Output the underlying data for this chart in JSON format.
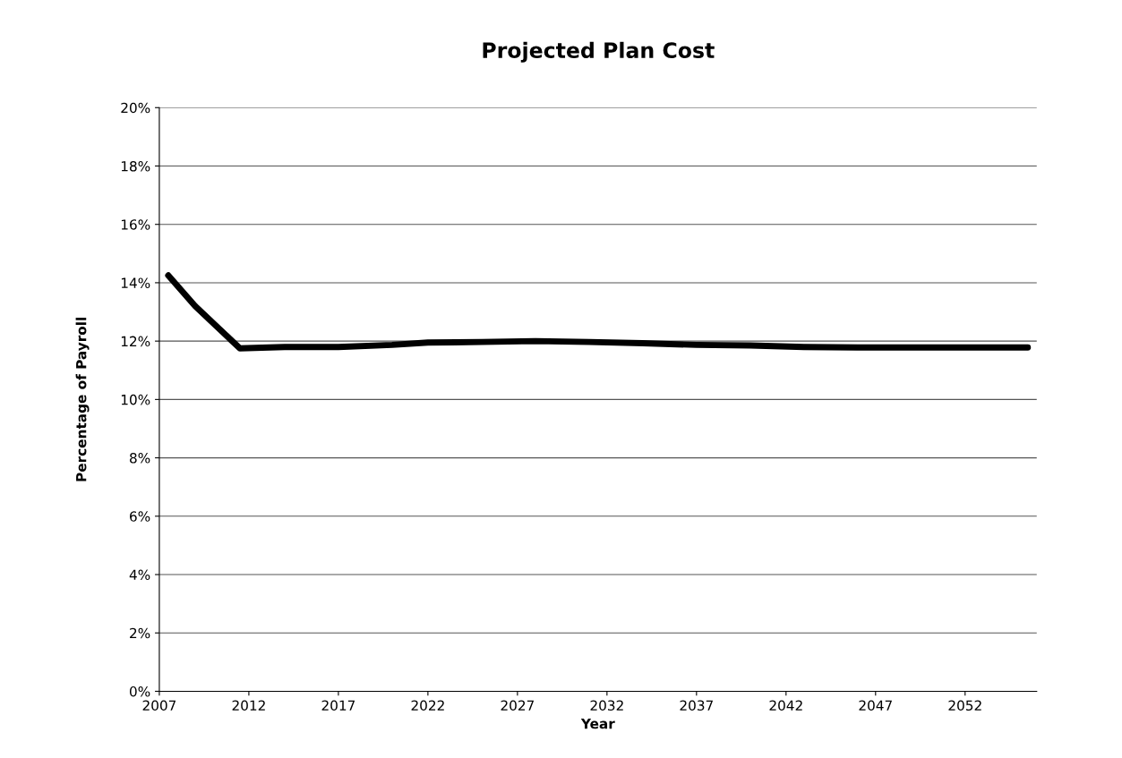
{
  "chart_data": {
    "type": "line",
    "title": "Projected Plan Cost",
    "xlabel": "Year",
    "ylabel": "Percentage of Payroll",
    "x": [
      2007.5,
      2009,
      2011.5,
      2014,
      2017,
      2020,
      2022,
      2025,
      2028,
      2031,
      2034,
      2037,
      2040,
      2043,
      2046,
      2050,
      2055.5
    ],
    "series": [
      {
        "color": "#000000",
        "values": [
          14.25,
          13.2,
          11.75,
          11.8,
          11.8,
          11.87,
          11.95,
          11.97,
          12.0,
          11.97,
          11.93,
          11.87,
          11.85,
          11.8,
          11.78,
          11.78,
          11.78
        ]
      }
    ],
    "xlim": [
      2007,
      2056
    ],
    "xticks": [
      2007,
      2012,
      2017,
      2022,
      2027,
      2032,
      2037,
      2042,
      2047,
      2052
    ],
    "ylim": [
      0,
      20
    ],
    "yticks": [
      {
        "value": 0,
        "label": "0%"
      },
      {
        "value": 2,
        "label": "2%"
      },
      {
        "value": 4,
        "label": "4%"
      },
      {
        "value": 6,
        "label": "6%"
      },
      {
        "value": 8,
        "label": "8%"
      },
      {
        "value": 10,
        "label": "10%"
      },
      {
        "value": 12,
        "label": "12%"
      },
      {
        "value": 14,
        "label": "14%"
      },
      {
        "value": 16,
        "label": "16%"
      },
      {
        "value": 18,
        "label": "18%"
      },
      {
        "value": 20,
        "label": "20%"
      }
    ],
    "grid": "y",
    "marker": "none",
    "line_style": "solid"
  }
}
